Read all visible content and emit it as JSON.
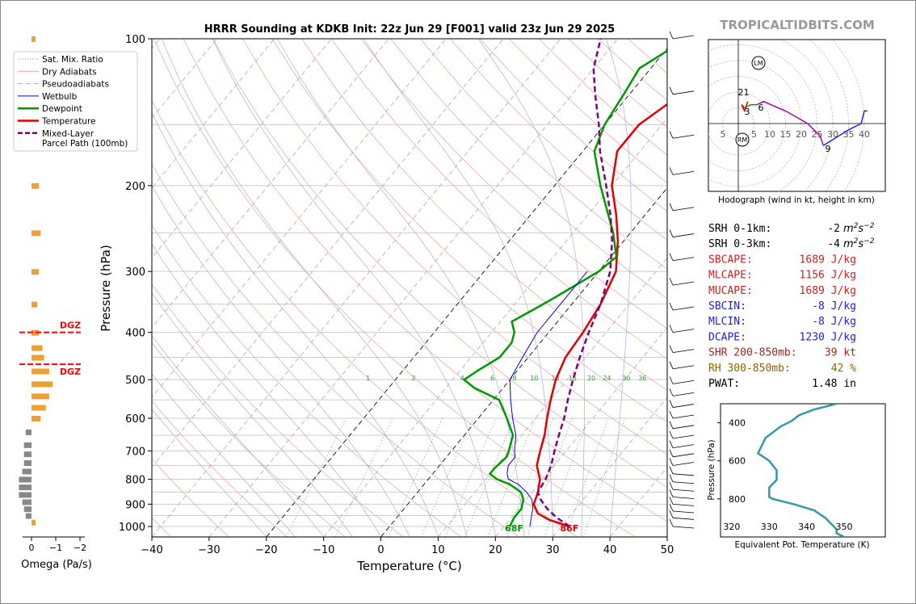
{
  "title": "HRRR Sounding at KDKB Init: 22z Jun 29 [F001] valid 23z Jun 29 2025",
  "watermark": "TROPICALTIDBITS.COM",
  "colors": {
    "temperature": "#e00000",
    "dewpoint": "#009900",
    "wetbulb": "#0000dd",
    "parcel": "#800080",
    "dgz": "#ff0000",
    "omega_up": "#f0a030",
    "omega_down": "#888888",
    "theta_e": "#3399aa"
  },
  "chart_data": [
    {
      "type": "line",
      "name": "skewt",
      "xlabel": "Temperature (°C)",
      "ylabel": "Pressure (hPa)",
      "xlim": [
        -40,
        50
      ],
      "ylim": [
        1050,
        100
      ],
      "x_ticks": [
        "−40",
        "−30",
        "−20",
        "−10",
        "0",
        "10",
        "20",
        "30",
        "40",
        "50"
      ],
      "y_ticks": [
        "100",
        "200",
        "300",
        "400",
        "500",
        "600",
        "700",
        "800",
        "900",
        "1000"
      ],
      "legend": [
        {
          "label": "Sat. Mix. Ratio",
          "style": "dotted"
        },
        {
          "label": "Dry Adiabats",
          "style": "thin-red"
        },
        {
          "label": "Pseudoadiabats",
          "style": "dashed-gray"
        },
        {
          "label": "Wetbulb",
          "style": "blue"
        },
        {
          "label": "Dewpoint",
          "style": "green"
        },
        {
          "label": "Temperature",
          "style": "red"
        },
        {
          "label": "Mixed-Layer\nParcel Path (100mb)",
          "style": "purple-dashed"
        }
      ],
      "legend_position": "top-left",
      "mixing_ratio_labels": [
        "1",
        "2",
        "4",
        "6",
        "8",
        "10",
        "13",
        "16",
        "20",
        "24",
        "30",
        "36"
      ],
      "surface_labels": {
        "dewpoint": "68F",
        "temperature": "86F"
      },
      "series": [
        {
          "name": "Temperature",
          "points": [
            [
              1000,
              31.5
            ],
            [
              970,
              27
            ],
            [
              940,
              24
            ],
            [
              900,
              22
            ],
            [
              850,
              21
            ],
            [
              800,
              19.5
            ],
            [
              750,
              17
            ],
            [
              700,
              15.5
            ],
            [
              650,
              14
            ],
            [
              600,
              12
            ],
            [
              550,
              10
            ],
            [
              500,
              8
            ],
            [
              450,
              6.5
            ],
            [
              400,
              6
            ],
            [
              350,
              5
            ],
            [
              300,
              3
            ],
            [
              260,
              -1
            ],
            [
              230,
              -5
            ],
            [
              200,
              -10
            ],
            [
              170,
              -14
            ],
            [
              150,
              -14
            ],
            [
              130,
              -11
            ],
            [
              110,
              -5
            ],
            [
              100,
              -1
            ]
          ]
        },
        {
          "name": "Dewpoint",
          "points": [
            [
              1000,
              21
            ],
            [
              960,
              20.5
            ],
            [
              920,
              20.5
            ],
            [
              880,
              19.5
            ],
            [
              850,
              18
            ],
            [
              820,
              15
            ],
            [
              800,
              12
            ],
            [
              780,
              10
            ],
            [
              760,
              10
            ],
            [
              720,
              10.5
            ],
            [
              700,
              10
            ],
            [
              650,
              8.5
            ],
            [
              600,
              5
            ],
            [
              550,
              1
            ],
            [
              520,
              -5
            ],
            [
              500,
              -8
            ],
            [
              480,
              -7
            ],
            [
              450,
              -5
            ],
            [
              420,
              -5
            ],
            [
              400,
              -6
            ],
            [
              380,
              -8
            ],
            [
              360,
              -6
            ],
            [
              340,
              -4
            ],
            [
              300,
              0
            ],
            [
              280,
              1
            ],
            [
              250,
              -3
            ],
            [
              200,
              -12
            ],
            [
              170,
              -18
            ],
            [
              150,
              -20
            ],
            [
              130,
              -21
            ],
            [
              115,
              -22
            ],
            [
              100,
              -18
            ]
          ]
        },
        {
          "name": "Wetbulb",
          "points": [
            [
              1000,
              24.5
            ],
            [
              960,
              23.5
            ],
            [
              920,
              22.5
            ],
            [
              880,
              21
            ],
            [
              850,
              19
            ],
            [
              820,
              16.5
            ],
            [
              800,
              14
            ],
            [
              780,
              13
            ],
            [
              750,
              12
            ],
            [
              720,
              12
            ],
            [
              700,
              11
            ],
            [
              650,
              9
            ],
            [
              600,
              6
            ],
            [
              550,
              3
            ],
            [
              500,
              0
            ],
            [
              450,
              -1
            ],
            [
              400,
              -2
            ],
            [
              350,
              -2
            ],
            [
              300,
              -2
            ]
          ]
        },
        {
          "name": "Mixed-Layer Parcel Path (100mb)",
          "points": [
            [
              1000,
              31.5
            ],
            [
              960,
              28
            ],
            [
              920,
              25
            ],
            [
              880,
              22.5
            ],
            [
              850,
              21
            ],
            [
              800,
              20.5
            ],
            [
              750,
              19.5
            ],
            [
              700,
              18
            ],
            [
              650,
              16.5
            ],
            [
              600,
              15
            ],
            [
              550,
              13
            ],
            [
              500,
              11
            ],
            [
              450,
              9
            ],
            [
              400,
              7
            ],
            [
              350,
              5
            ],
            [
              300,
              2
            ],
            [
              260,
              -2
            ],
            [
              230,
              -6
            ],
            [
              200,
              -11
            ],
            [
              170,
              -17
            ],
            [
              150,
              -21
            ],
            [
              130,
              -26
            ],
            [
              115,
              -30
            ],
            [
              100,
              -33
            ]
          ]
        }
      ]
    },
    {
      "type": "line",
      "name": "hodograph",
      "caption": "Hodograph (wind in kt, height in km)",
      "rings": [
        "5",
        "10",
        "15",
        "20",
        "25",
        "30",
        "35",
        "40"
      ],
      "left_label": "5",
      "markers": [
        "LM",
        "RM"
      ],
      "height_labels": [
        "2",
        "1",
        "3",
        "6",
        "9"
      ],
      "segments": [
        {
          "color": "#e00000",
          "points": [
            [
              3,
              7
            ],
            [
              2,
              4
            ],
            [
              1,
              6
            ],
            [
              2,
              5
            ]
          ]
        },
        {
          "color": "#009900",
          "points": [
            [
              2,
              5
            ],
            [
              4,
              6
            ],
            [
              6,
              6
            ]
          ]
        },
        {
          "color": "#aa00aa",
          "points": [
            [
              6,
              6
            ],
            [
              8,
              7
            ],
            [
              15,
              4
            ],
            [
              22,
              0
            ],
            [
              26,
              -4
            ],
            [
              27,
              -7
            ]
          ]
        },
        {
          "color": "#2222ee",
          "points": [
            [
              27,
              -7
            ],
            [
              35,
              -2
            ],
            [
              39,
              0
            ],
            [
              40,
              4
            ],
            [
              41,
              4
            ]
          ]
        }
      ],
      "marker_points": {
        "LM": [
          7,
          20
        ],
        "RM": [
          1,
          -5
        ]
      }
    },
    {
      "type": "line",
      "name": "theta_e",
      "xlabel": "Equivalent Pot. Temperature (K)",
      "ylabel": "Pressure (hPa)",
      "x_ticks": [
        "320",
        "330",
        "340",
        "350"
      ],
      "y_ticks": [
        "400",
        "600",
        "800"
      ],
      "xlim": [
        317,
        361
      ],
      "ylim": [
        300,
        1000
      ],
      "points": [
        [
          300,
          348
        ],
        [
          330,
          342
        ],
        [
          360,
          338
        ],
        [
          390,
          336
        ],
        [
          420,
          333
        ],
        [
          450,
          331
        ],
        [
          480,
          329
        ],
        [
          520,
          328
        ],
        [
          560,
          327
        ],
        [
          600,
          330
        ],
        [
          650,
          332
        ],
        [
          700,
          332
        ],
        [
          740,
          330
        ],
        [
          760,
          330
        ],
        [
          790,
          330
        ],
        [
          800,
          331
        ],
        [
          830,
          337
        ],
        [
          860,
          342
        ],
        [
          900,
          345
        ],
        [
          940,
          347
        ],
        [
          960,
          348
        ],
        [
          980,
          348
        ],
        [
          1000,
          350
        ]
      ]
    },
    {
      "type": "bar",
      "name": "omega",
      "xlabel": "Omega (Pa/s)",
      "x_ticks": [
        "0",
        "−1",
        "−2"
      ],
      "dgz_label": "DGZ",
      "dgz_levels": [
        400,
        465
      ],
      "bars": [
        [
          100,
          0.05
        ],
        [
          200,
          0.15
        ],
        [
          250,
          0.2
        ],
        [
          300,
          0.15
        ],
        [
          350,
          0.1
        ],
        [
          400,
          0.15
        ],
        [
          430,
          0.25
        ],
        [
          450,
          0.3
        ],
        [
          480,
          0.45
        ],
        [
          510,
          0.55
        ],
        [
          540,
          0.45
        ],
        [
          570,
          0.35
        ],
        [
          600,
          0.2
        ],
        [
          640,
          -0.1
        ],
        [
          680,
          -0.15
        ],
        [
          710,
          -0.15
        ],
        [
          740,
          -0.15
        ],
        [
          770,
          -0.2
        ],
        [
          800,
          -0.3
        ],
        [
          830,
          -0.3
        ],
        [
          860,
          -0.3
        ],
        [
          890,
          -0.2
        ],
        [
          920,
          -0.15
        ],
        [
          950,
          -0.1
        ],
        [
          980,
          0.05
        ]
      ]
    }
  ],
  "stats": [
    {
      "label": "SRH 0-1km:",
      "value": "-2",
      "unit": "m2s-2",
      "color": "#000000"
    },
    {
      "label": "SRH 0-3km:",
      "value": "-4",
      "unit": "m2s-2",
      "color": "#000000"
    },
    {
      "label": "SBCAPE:",
      "value": "1689 J/kg",
      "color": "#cc2222"
    },
    {
      "label": "MLCAPE:",
      "value": "1156 J/kg",
      "color": "#cc2222"
    },
    {
      "label": "MUCAPE:",
      "value": "1689 J/kg",
      "color": "#cc2222"
    },
    {
      "label": "SBCIN:",
      "value": "-8 J/kg",
      "color": "#2222cc"
    },
    {
      "label": "MLCIN:",
      "value": "-8 J/kg",
      "color": "#2222cc"
    },
    {
      "label": "DCAPE:",
      "value": "1230 J/kg",
      "color": "#2222cc"
    },
    {
      "label": "SHR 200-850mb:",
      "value": "39 kt",
      "color": "#aa2222"
    },
    {
      "label": "RH 300-850mb:",
      "value": "42 %",
      "color": "#886600"
    },
    {
      "label": "PWAT:",
      "value": "1.48 in",
      "color": "#000000"
    }
  ]
}
